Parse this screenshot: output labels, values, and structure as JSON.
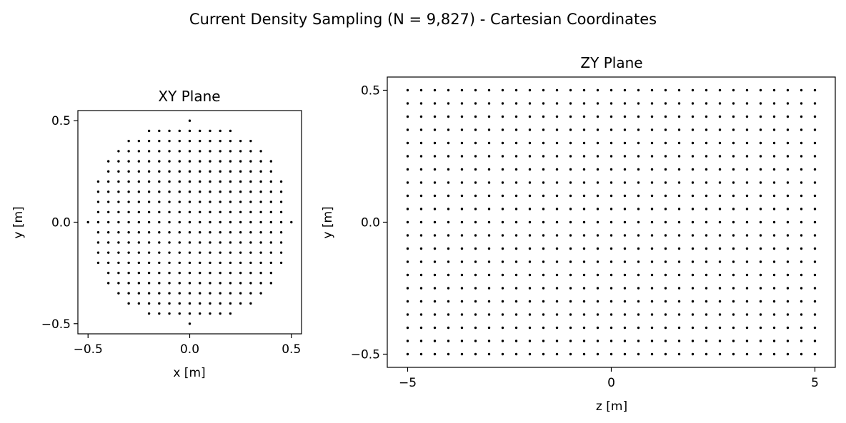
{
  "figure": {
    "suptitle": "Current Density Sampling (N = 9,827) - Cartesian Coordinates"
  },
  "chart_data": [
    {
      "type": "scatter",
      "title": "XY Plane",
      "xlabel": "x [m]",
      "ylabel": "y [m]",
      "xlim": [
        -0.55,
        0.55
      ],
      "ylim": [
        -0.55,
        0.55
      ],
      "xticks": [
        -0.5,
        0.0,
        0.5
      ],
      "xtick_labels": [
        "−0.5",
        "0.0",
        "0.5"
      ],
      "yticks": [
        -0.5,
        0.0,
        0.5
      ],
      "ytick_labels": [
        "−0.5",
        "0.0",
        "0.5"
      ],
      "grid": false,
      "marker_color": "#000000",
      "points_description": "square grid, spacing 0.05 m, points inside circle of radius 0.5 m",
      "grid_spacing": 0.05,
      "radius": 0.5
    },
    {
      "type": "scatter",
      "title": "ZY Plane",
      "xlabel": "z [m]",
      "ylabel": "y [m]",
      "xlim": [
        -5.5,
        5.5
      ],
      "ylim": [
        -0.55,
        0.55
      ],
      "xticks": [
        -5,
        0,
        5
      ],
      "xtick_labels": [
        "−5",
        "0",
        "5"
      ],
      "yticks": [
        -0.5,
        0.0,
        0.5
      ],
      "ytick_labels": [
        "−0.5",
        "0.0",
        "0.5"
      ],
      "grid": false,
      "marker_color": "#000000",
      "z_values": [
        -5.0,
        -4.667,
        -4.333,
        -4.0,
        -3.667,
        -3.333,
        -3.0,
        -2.667,
        -2.333,
        -2.0,
        -1.667,
        -1.333,
        -1.0,
        -0.667,
        -0.333,
        0.0,
        0.333,
        0.667,
        1.0,
        1.333,
        1.667,
        2.0,
        2.333,
        2.667,
        3.0,
        3.333,
        3.667,
        4.0,
        4.333,
        4.667,
        5.0
      ],
      "y_values": [
        -0.5,
        -0.45,
        -0.4,
        -0.35,
        -0.3,
        -0.25,
        -0.2,
        -0.15,
        -0.1,
        -0.05,
        0.0,
        0.05,
        0.1,
        0.15,
        0.2,
        0.25,
        0.3,
        0.35,
        0.4,
        0.45,
        0.5
      ]
    }
  ]
}
